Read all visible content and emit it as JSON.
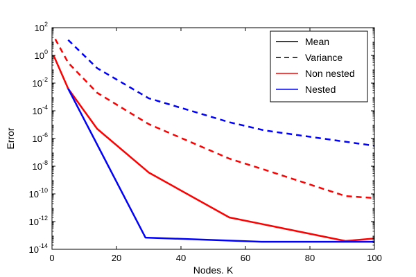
{
  "chart_data": {
    "type": "line",
    "title": "",
    "xlabel": "Nodes. K",
    "ylabel": "Error",
    "xlim": [
      0,
      100
    ],
    "ylim": [
      1e-14,
      100
    ],
    "yscale": "log",
    "grid": false,
    "legend_position": "top-right",
    "x_ticks": [
      0,
      20,
      40,
      60,
      80,
      100
    ],
    "y_ticks": [
      {
        "base": "10",
        "exp": "2",
        "value": 100
      },
      {
        "base": "10",
        "exp": "0",
        "value": 1
      },
      {
        "base": "10",
        "exp": "-2",
        "value": 0.01
      },
      {
        "base": "10",
        "exp": "-4",
        "value": 0.0001
      },
      {
        "base": "10",
        "exp": "-6",
        "value": 1e-06
      },
      {
        "base": "10",
        "exp": "-8",
        "value": 1e-08
      },
      {
        "base": "10",
        "exp": "-10",
        "value": 1e-10
      },
      {
        "base": "10",
        "exp": "-12",
        "value": 1e-12
      },
      {
        "base": "10",
        "exp": "-14",
        "value": 1e-14
      }
    ],
    "legend": [
      {
        "label": "Mean",
        "color": "#000000",
        "dash": false
      },
      {
        "label": "Variance",
        "color": "#000000",
        "dash": true
      },
      {
        "label": "Non nested",
        "color": "#ff0000",
        "dash": false
      },
      {
        "label": "Nested",
        "color": "#0000ff",
        "dash": false
      }
    ],
    "series": [
      {
        "color": "#ff0000",
        "dash": false,
        "points": [
          [
            0.5,
            1.0
          ],
          [
            5,
            0.004
          ],
          [
            14,
            5e-06
          ],
          [
            30,
            3.5e-09
          ],
          [
            55,
            2e-12
          ],
          [
            91,
            4e-14
          ],
          [
            100,
            6e-14
          ]
        ]
      },
      {
        "color": "#ff0000",
        "dash": true,
        "points": [
          [
            1,
            15
          ],
          [
            5,
            0.3
          ],
          [
            14,
            0.002
          ],
          [
            30,
            1.1e-05
          ],
          [
            55,
            3.5e-08
          ],
          [
            66,
            5.5e-09
          ],
          [
            91,
            7e-11
          ],
          [
            100,
            5e-11
          ]
        ]
      },
      {
        "color": "#0000ff",
        "dash": false,
        "points": [
          [
            5,
            0.004
          ],
          [
            29,
            7e-14
          ],
          [
            65,
            3.5e-14
          ],
          [
            100,
            3.5e-14
          ]
        ]
      },
      {
        "color": "#0000ff",
        "dash": true,
        "points": [
          [
            5,
            13
          ],
          [
            14,
            0.12
          ],
          [
            30,
            0.0008
          ],
          [
            55,
            1.5e-05
          ],
          [
            66,
            3.8e-06
          ],
          [
            100,
            3e-07
          ]
        ]
      }
    ]
  }
}
